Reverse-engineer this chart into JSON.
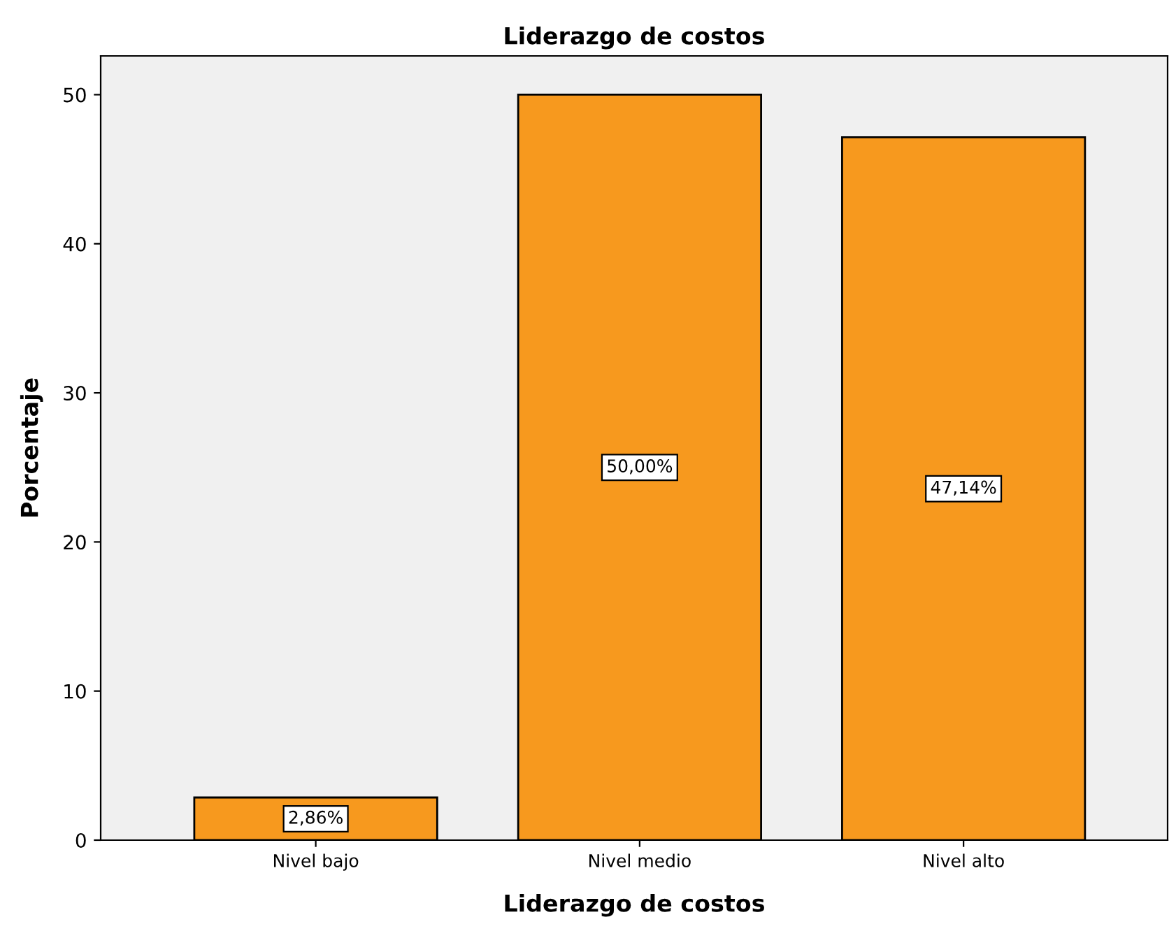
{
  "chart_data": {
    "type": "bar",
    "title": "Liderazgo de costos",
    "xlabel": "Liderazgo de costos",
    "ylabel": "Porcentaje",
    "categories": [
      "Nivel bajo",
      "Nivel medio",
      "Nivel alto"
    ],
    "values": [
      2.86,
      50.0,
      47.14
    ],
    "value_labels": [
      "2,86%",
      "50,00%",
      "47,14%"
    ],
    "color": "#f7991e",
    "ylim": [
      0,
      52.6
    ],
    "yticks": [
      0,
      10,
      20,
      30,
      40,
      50
    ],
    "grid": false
  }
}
